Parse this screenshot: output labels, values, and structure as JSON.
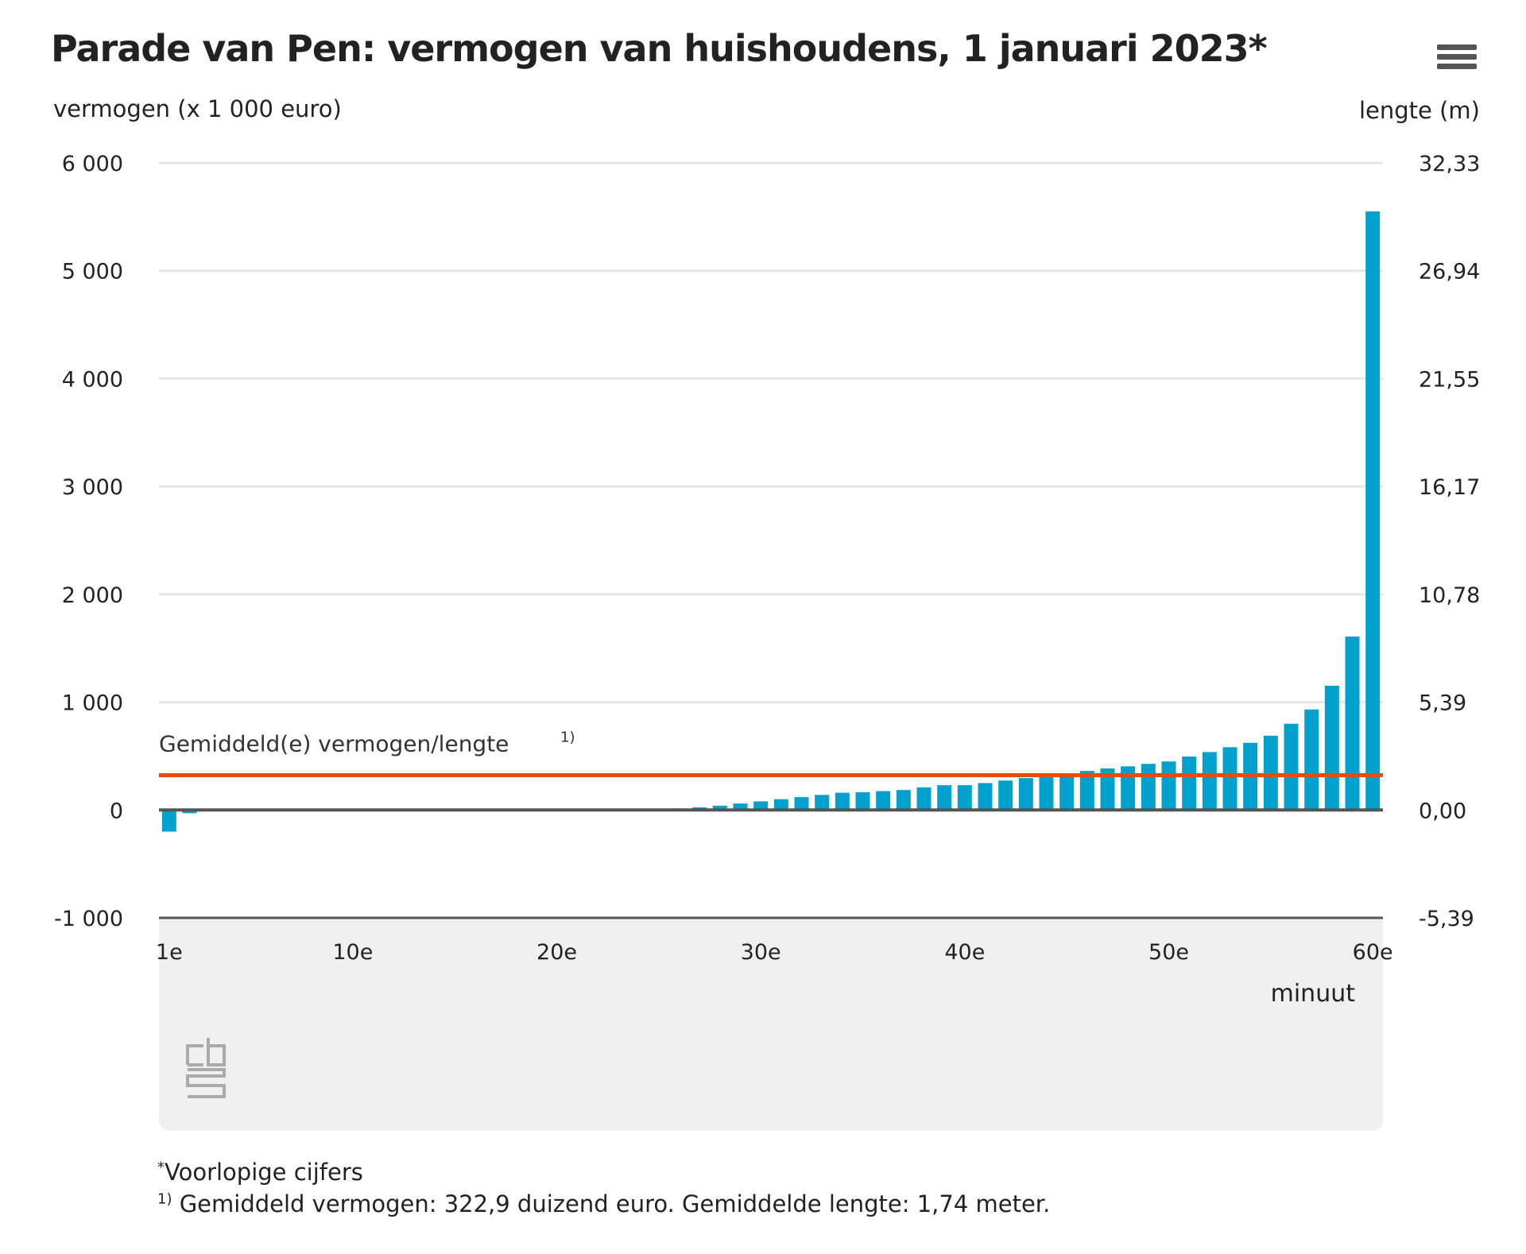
{
  "title": "Parade van Pen: vermogen van huishoudens, 1 januari 2023*",
  "menu_icon": "hamburger-menu-icon",
  "chart_data": {
    "type": "bar",
    "title": "Parade van Pen: vermogen van huishoudens, 1 januari 2023*",
    "ylabel": "vermogen (x 1 000 euro)",
    "ylabel_right": "lengte (m)",
    "xlabel": "minuut",
    "ylim": [
      -1000,
      6000
    ],
    "yticks": [
      "6 000",
      "5 000",
      "4 000",
      "3 000",
      "2 000",
      "1 000",
      "0",
      "-1 000"
    ],
    "yticks_right": [
      "32,33",
      "26,94",
      "21,55",
      "16,17",
      "10,78",
      "5,39",
      "0,00",
      "-5,39"
    ],
    "xticks": [
      "1e",
      "10e",
      "20e",
      "30e",
      "40e",
      "50e",
      "60e"
    ],
    "grid": true,
    "bar_color": "#00a1cd",
    "values": [
      -200,
      -30,
      -10,
      -8,
      -5,
      -2,
      0,
      0,
      0,
      0,
      0,
      0,
      0,
      0,
      0,
      0,
      0,
      0,
      0,
      0,
      0,
      2,
      3,
      5,
      8,
      15,
      25,
      40,
      60,
      80,
      100,
      119,
      140,
      160,
      165,
      175,
      185,
      210,
      230,
      230,
      250,
      273,
      296,
      319,
      339,
      362,
      385,
      405,
      428,
      450,
      496,
      537,
      582,
      623,
      689,
      800,
      932,
      1152,
      1608,
      5550
    ],
    "average_line": {
      "label": "Gemiddeld(e) vermogen/lengte",
      "footnote_marker": "1)",
      "value": 322.9,
      "color": "#e94c0a"
    }
  },
  "footnotes": {
    "star_marker": "*",
    "star": "Voorlopige cijfers",
    "one_marker": "1)",
    "one": "Gemiddeld vermogen: 322,9 duizend euro. Gemiddelde lengte: 1,74 meter."
  },
  "logo_text": "cbs"
}
